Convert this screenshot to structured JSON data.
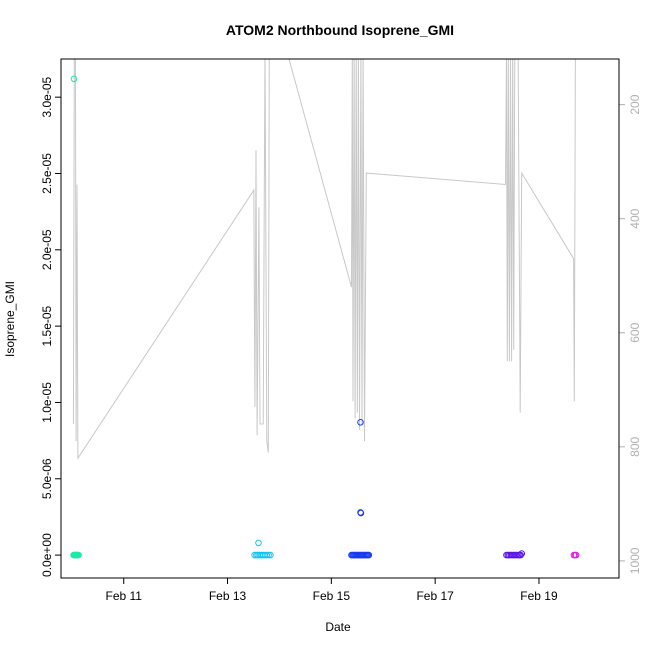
{
  "chart_data": {
    "type": "scatter",
    "title": "ATOM2 Northbound Isoprene_GMI",
    "xlabel": "Date",
    "ylabel": "Isoprene_GMI",
    "x_range": [
      "2017-02-09 19:00",
      "2017-02-20 13:00"
    ],
    "ylim": [
      -1.5e-06,
      3.25e-05
    ],
    "y_ticks": [
      "0.0e+00",
      "5.0e-06",
      "1.0e-05",
      "1.5e-05",
      "2.0e-05",
      "2.5e-05",
      "3.0e-05"
    ],
    "y_tick_values": [
      0,
      5e-06,
      1e-05,
      1.5e-05,
      2e-05,
      2.5e-05,
      3e-05
    ],
    "x_ticks": [
      "Feb 11",
      "Feb 13",
      "Feb 15",
      "Feb 17",
      "Feb 19"
    ],
    "x_tick_values": [
      "2017-02-11 00:00",
      "2017-02-13 00:00",
      "2017-02-15 00:00",
      "2017-02-17 00:00",
      "2017-02-19 00:00"
    ],
    "secondary_axis": {
      "ticks": [
        "200",
        "400",
        "600",
        "800",
        "1000"
      ],
      "tick_values": [
        200,
        400,
        600,
        800,
        1000
      ],
      "range_inverted": [
        120,
        1030
      ],
      "color": "#b0b0b0"
    },
    "series": [
      {
        "color": "#1de9a8",
        "points": [
          [
            "2017-02-10 01:00",
            3.12e-05
          ],
          [
            "2017-02-10 00:50",
            0
          ],
          [
            "2017-02-10 01:10",
            0
          ],
          [
            "2017-02-10 01:30",
            0
          ],
          [
            "2017-02-10 01:50",
            0
          ],
          [
            "2017-02-10 02:10",
            0
          ],
          [
            "2017-02-10 02:30",
            0
          ],
          [
            "2017-02-10 02:50",
            0
          ],
          [
            "2017-02-10 03:05",
            0
          ]
        ]
      },
      {
        "color": "#12c4f0",
        "points": [
          [
            "2017-02-13 14:20",
            8e-07
          ],
          [
            "2017-02-13 12:30",
            0
          ],
          [
            "2017-02-13 13:20",
            0
          ],
          [
            "2017-02-13 14:00",
            0
          ],
          [
            "2017-02-13 14:50",
            0
          ],
          [
            "2017-02-13 15:40",
            0
          ],
          [
            "2017-02-13 16:30",
            0
          ],
          [
            "2017-02-13 17:20",
            0
          ],
          [
            "2017-02-13 18:10",
            0
          ],
          [
            "2017-02-13 19:00",
            0
          ],
          [
            "2017-02-13 19:50",
            0
          ]
        ]
      },
      {
        "color": "#1a3cf0",
        "points": [
          [
            "2017-02-15 13:30",
            8.7e-06
          ],
          [
            "2017-02-15 13:30",
            2.8e-06
          ],
          [
            "2017-02-15 13:40",
            2.75e-06
          ],
          [
            "2017-02-15 09:20",
            0
          ],
          [
            "2017-02-15 09:50",
            0
          ],
          [
            "2017-02-15 10:20",
            0
          ],
          [
            "2017-02-15 10:50",
            0
          ],
          [
            "2017-02-15 11:20",
            0
          ],
          [
            "2017-02-15 11:50",
            0
          ],
          [
            "2017-02-15 12:20",
            0
          ],
          [
            "2017-02-15 12:50",
            0
          ],
          [
            "2017-02-15 13:20",
            0
          ],
          [
            "2017-02-15 13:50",
            0
          ],
          [
            "2017-02-15 14:20",
            0
          ],
          [
            "2017-02-15 14:50",
            0
          ],
          [
            "2017-02-15 15:20",
            0
          ],
          [
            "2017-02-15 15:50",
            0
          ],
          [
            "2017-02-15 16:20",
            0
          ],
          [
            "2017-02-15 16:50",
            0
          ],
          [
            "2017-02-15 17:20",
            0
          ]
        ]
      },
      {
        "color": "#5a14e8",
        "points": [
          [
            "2017-02-18 16:00",
            1e-07
          ],
          [
            "2017-02-18 09:00",
            0
          ],
          [
            "2017-02-18 09:40",
            0
          ],
          [
            "2017-02-18 10:20",
            0
          ],
          [
            "2017-02-18 11:00",
            0
          ],
          [
            "2017-02-18 11:40",
            0
          ],
          [
            "2017-02-18 12:20",
            0
          ],
          [
            "2017-02-18 13:00",
            0
          ],
          [
            "2017-02-18 13:40",
            0
          ],
          [
            "2017-02-18 14:20",
            0
          ],
          [
            "2017-02-18 15:00",
            0
          ],
          [
            "2017-02-18 15:30",
            0
          ]
        ]
      },
      {
        "color": "#e020e0",
        "points": [
          [
            "2017-02-19 16:10",
            0
          ],
          [
            "2017-02-19 16:40",
            0
          ],
          [
            "2017-02-19 17:10",
            0
          ]
        ]
      }
    ],
    "secondary_line": {
      "color": "#c8c8c8",
      "points": [
        [
          "2017-02-10 00:45",
          760
        ],
        [
          "2017-02-10 01:10",
          100
        ],
        [
          "2017-02-10 01:40",
          100
        ],
        [
          "2017-02-10 02:00",
          790
        ],
        [
          "2017-02-10 02:25",
          340
        ],
        [
          "2017-02-10 02:50",
          820
        ],
        [
          "2017-02-13 12:10",
          350
        ],
        [
          "2017-02-13 12:40",
          730
        ],
        [
          "2017-02-13 13:10",
          280
        ],
        [
          "2017-02-13 13:40",
          780
        ],
        [
          "2017-02-13 14:30",
          380
        ],
        [
          "2017-02-13 15:00",
          760
        ],
        [
          "2017-02-13 16:30",
          760
        ],
        [
          "2017-02-13 17:20",
          100
        ],
        [
          "2017-02-13 18:10",
          790
        ],
        [
          "2017-02-13 18:50",
          810
        ],
        [
          "2017-02-13 19:20",
          100
        ],
        [
          "2017-02-13 20:00",
          100
        ],
        [
          "2017-02-14 03:00",
          100
        ],
        [
          "2017-02-15 09:20",
          520
        ],
        [
          "2017-02-15 09:40",
          100
        ],
        [
          "2017-02-15 10:00",
          720
        ],
        [
          "2017-02-15 10:30",
          100
        ],
        [
          "2017-02-15 11:00",
          750
        ],
        [
          "2017-02-15 11:30",
          100
        ],
        [
          "2017-02-15 12:00",
          740
        ],
        [
          "2017-02-15 12:30",
          100
        ],
        [
          "2017-02-15 13:00",
          770
        ],
        [
          "2017-02-15 13:40",
          100
        ],
        [
          "2017-02-15 14:10",
          760
        ],
        [
          "2017-02-15 14:40",
          100
        ],
        [
          "2017-02-15 15:20",
          790
        ],
        [
          "2017-02-15 16:10",
          320
        ],
        [
          "2017-02-18 08:30",
          340
        ],
        [
          "2017-02-18 09:00",
          100
        ],
        [
          "2017-02-18 09:20",
          650
        ],
        [
          "2017-02-18 09:50",
          100
        ],
        [
          "2017-02-18 10:20",
          650
        ],
        [
          "2017-02-18 10:50",
          100
        ],
        [
          "2017-02-18 11:20",
          650
        ],
        [
          "2017-02-18 11:50",
          100
        ],
        [
          "2017-02-18 12:20",
          630
        ],
        [
          "2017-02-18 12:50",
          100
        ],
        [
          "2017-02-18 14:20",
          100
        ],
        [
          "2017-02-18 15:20",
          740
        ],
        [
          "2017-02-18 16:00",
          320
        ],
        [
          "2017-02-19 16:00",
          470
        ],
        [
          "2017-02-19 16:20",
          720
        ],
        [
          "2017-02-19 16:50",
          100
        ]
      ]
    }
  }
}
